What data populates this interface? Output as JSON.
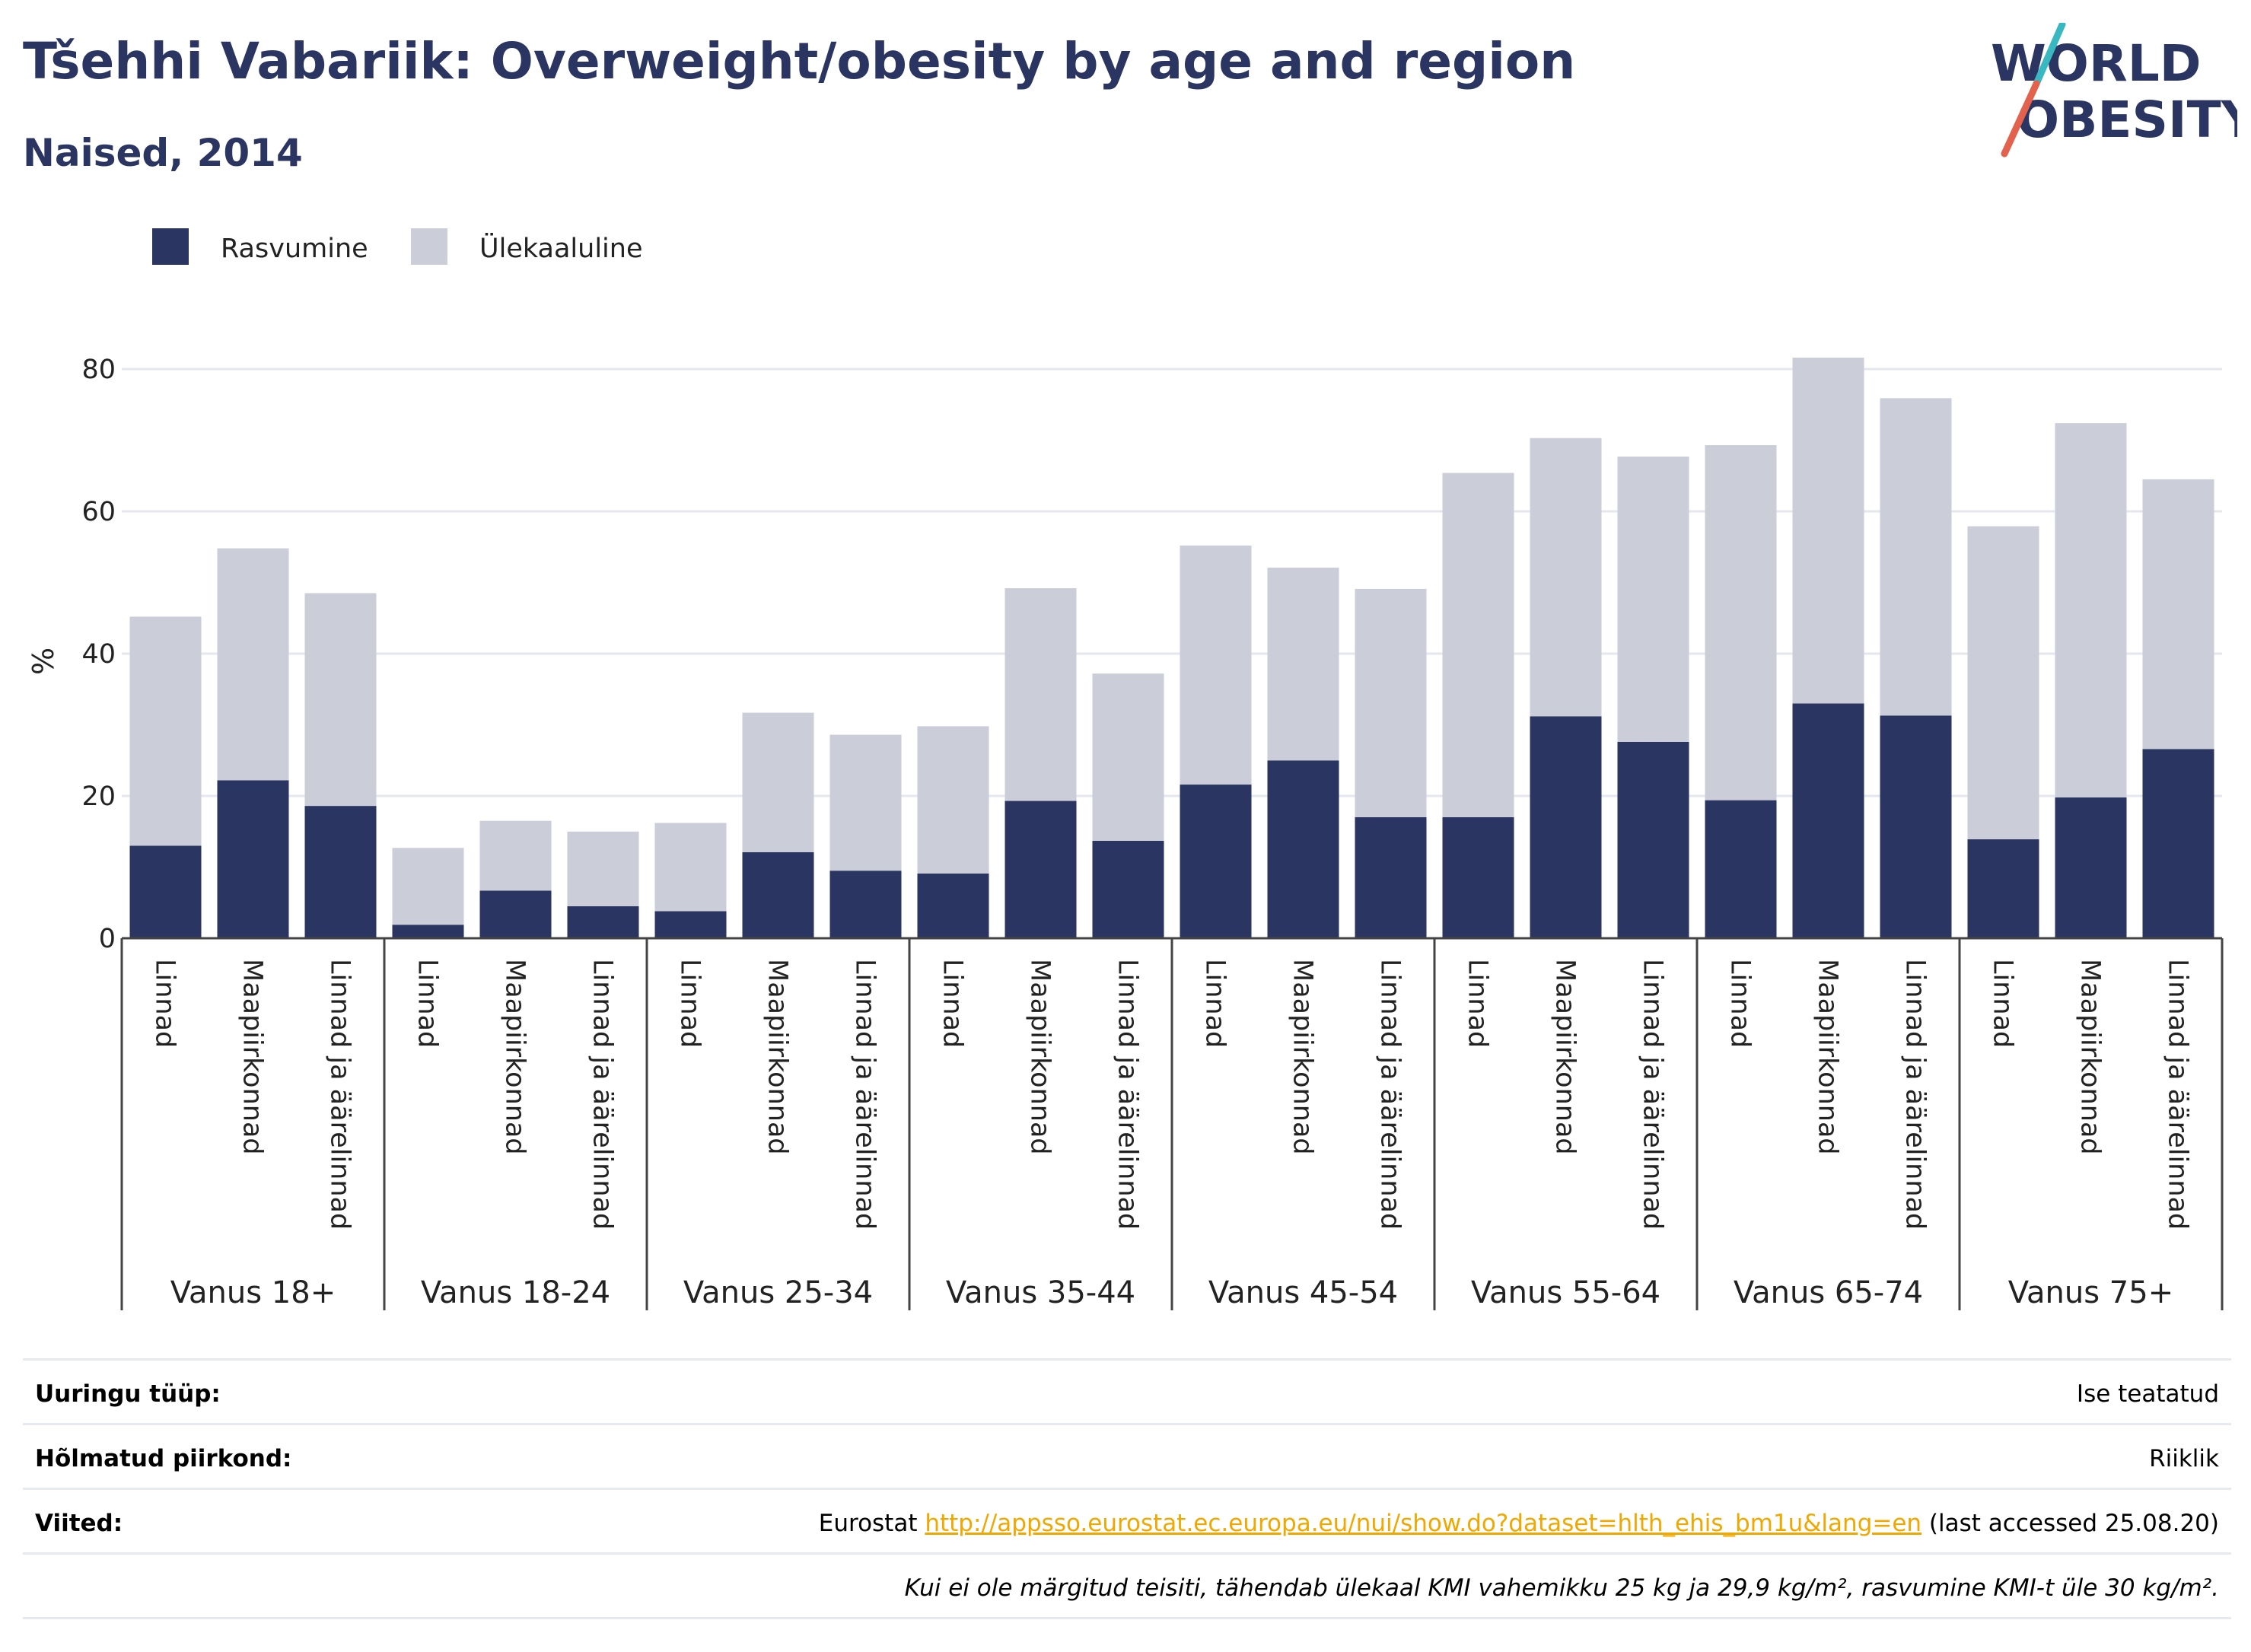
{
  "header": {
    "title": "Tšehhi Vabariik: Overweight/obesity by age and region",
    "subtitle": "Naised, 2014"
  },
  "logo": {
    "line1": "WORLD",
    "line2": "OBESITY",
    "accent_colors": [
      "#3ab8c2",
      "#e2624d"
    ]
  },
  "colors": {
    "obesity": "#2a3561",
    "overweight": "#cbcdd9",
    "text_dark": "#2a3561",
    "link": "#f0a800"
  },
  "chart_data": {
    "type": "bar",
    "stacked": true,
    "title": "Tšehhi Vabariik: Overweight/obesity by age and region",
    "subtitle": "Naised, 2014",
    "ylabel": "%",
    "ylim": [
      0,
      85
    ],
    "yticks": [
      0,
      20,
      40,
      60,
      80
    ],
    "grid": true,
    "legend_position": "top-left",
    "groups": [
      "Vanus 18+",
      "Vanus 18-24",
      "Vanus 25-34",
      "Vanus 35-44",
      "Vanus 45-54",
      "Vanus 55-64",
      "Vanus 65-74",
      "Vanus 75+"
    ],
    "subcategories": [
      "Linnad",
      "Maapiirkonnad",
      "Linnad ja äärelinnad"
    ],
    "series": [
      {
        "name": "Rasvumine",
        "color": "#2a3561",
        "values": [
          13.0,
          22.2,
          18.6,
          1.9,
          6.7,
          4.5,
          3.8,
          12.1,
          9.5,
          9.1,
          19.3,
          13.7,
          21.6,
          25.0,
          17.0,
          17.0,
          31.2,
          27.6,
          19.4,
          33.0,
          31.3,
          13.9,
          19.8,
          26.6
        ]
      },
      {
        "name": "Ülekaaluline",
        "color": "#cbcdd9",
        "values": [
          32.2,
          32.6,
          29.9,
          10.8,
          9.8,
          10.5,
          12.4,
          19.6,
          19.1,
          20.7,
          29.9,
          23.5,
          33.6,
          27.1,
          32.1,
          48.4,
          39.1,
          40.1,
          49.9,
          48.6,
          44.6,
          44.0,
          52.6,
          37.9
        ]
      }
    ]
  },
  "footer": {
    "rows": [
      {
        "label": "Uuringu tüüp:",
        "value": "Ise teatatud"
      },
      {
        "label": "Hõlmatud piirkond:",
        "value": "Riiklik"
      }
    ],
    "sources": {
      "label": "Viited:",
      "prefix": "Eurostat ",
      "link": "http://appsso.eurostat.ec.europa.eu/nui/show.do?dataset=hlth_ehis_bm1u&lang=en",
      "suffix": " (last accessed 25.08.20)"
    },
    "note": "Kui ei ole märgitud teisiti, tähendab ülekaal KMI vahemikku 25 kg ja 29,9 kg/m², rasvumine KMI-t üle 30 kg/m²."
  }
}
